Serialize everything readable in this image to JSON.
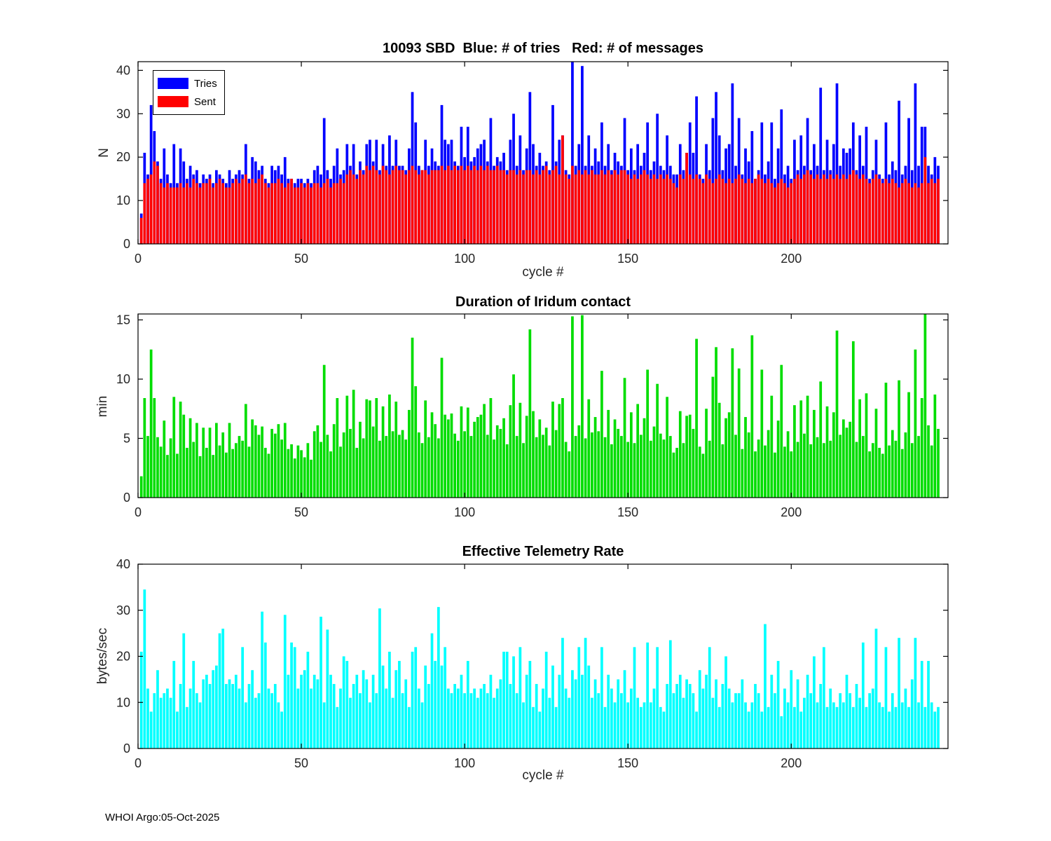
{
  "footer_text": "WHOI Argo:05-Oct-2025",
  "chart_data": [
    {
      "type": "bar",
      "title": "10093 SBD  Blue: # of tries   Red: # of messages",
      "ylabel": "N",
      "xlabel": "cycle #",
      "xlim": [
        0,
        248
      ],
      "ylim": [
        0,
        42
      ],
      "xticks": [
        0,
        50,
        100,
        150,
        200
      ],
      "yticks": [
        0,
        10,
        20,
        30,
        40
      ],
      "legend_position": "top-left",
      "grid": false,
      "series": [
        {
          "name": "Tries",
          "color": "#0000FF",
          "values": [
            7,
            21,
            16,
            32,
            26,
            19,
            15,
            22,
            16,
            14,
            23,
            14,
            22,
            19,
            15,
            18,
            16,
            17,
            14,
            16,
            15,
            16,
            14,
            17,
            16,
            15,
            14,
            17,
            15,
            16,
            17,
            16,
            23,
            15,
            20,
            19,
            17,
            18,
            15,
            14,
            18,
            17,
            18,
            16,
            20,
            15,
            15,
            14,
            15,
            15,
            14,
            15,
            14,
            17,
            18,
            16,
            29,
            17,
            15,
            18,
            22,
            16,
            17,
            23,
            18,
            23,
            16,
            19,
            17,
            23,
            24,
            19,
            24,
            17,
            23,
            18,
            25,
            18,
            24,
            18,
            18,
            17,
            22,
            35,
            28,
            18,
            17,
            24,
            18,
            22,
            19,
            18,
            32,
            24,
            23,
            24,
            19,
            18,
            27,
            20,
            27,
            19,
            20,
            22,
            23,
            24,
            19,
            29,
            18,
            20,
            19,
            21,
            17,
            24,
            30,
            18,
            25,
            17,
            22,
            35,
            23,
            18,
            21,
            18,
            19,
            17,
            32,
            19,
            24,
            25,
            17,
            16,
            42,
            18,
            23,
            41,
            18,
            25,
            18,
            22,
            19,
            28,
            18,
            23,
            17,
            21,
            19,
            18,
            29,
            17,
            22,
            17,
            23,
            18,
            21,
            28,
            17,
            19,
            30,
            18,
            17,
            25,
            18,
            16,
            16,
            23,
            17,
            21,
            28,
            21,
            34,
            16,
            15,
            23,
            17,
            29,
            35,
            25,
            17,
            22,
            23,
            37,
            18,
            29,
            16,
            22,
            19,
            26,
            15,
            17,
            28,
            16,
            19,
            28,
            15,
            22,
            31,
            16,
            18,
            15,
            24,
            17,
            25,
            18,
            29,
            17,
            23,
            18,
            36,
            17,
            24,
            17,
            23,
            37,
            18,
            22,
            21,
            22,
            28,
            17,
            25,
            18,
            27,
            15,
            17,
            24,
            16,
            15,
            28,
            16,
            19,
            17,
            33,
            16,
            18,
            29,
            17,
            37,
            18,
            27,
            27,
            18,
            16,
            20,
            18
          ]
        },
        {
          "name": "Sent",
          "color": "#FF0000",
          "values": [
            6,
            14,
            15,
            16,
            19,
            18,
            14,
            13,
            14,
            13,
            13,
            13,
            14,
            13,
            14,
            13,
            15,
            14,
            13,
            14,
            14,
            15,
            13,
            14,
            15,
            14,
            13,
            13,
            14,
            15,
            14,
            15,
            16,
            14,
            15,
            14,
            15,
            16,
            14,
            13,
            14,
            14,
            15,
            14,
            13,
            14,
            15,
            13,
            13,
            14,
            13,
            14,
            13,
            14,
            14,
            13,
            14,
            15,
            13,
            14,
            14,
            15,
            14,
            16,
            17,
            16,
            15,
            17,
            16,
            18,
            17,
            18,
            17,
            16,
            18,
            17,
            16,
            17,
            18,
            17,
            17,
            16,
            17,
            18,
            17,
            16,
            17,
            17,
            16,
            17,
            17,
            17,
            18,
            17,
            18,
            17,
            18,
            17,
            18,
            17,
            18,
            17,
            18,
            17,
            18,
            17,
            18,
            17,
            17,
            18,
            17,
            17,
            16,
            17,
            17,
            16,
            17,
            16,
            17,
            17,
            16,
            17,
            16,
            17,
            18,
            16,
            17,
            18,
            16,
            25,
            16,
            15,
            18,
            16,
            17,
            16,
            17,
            16,
            17,
            16,
            16,
            17,
            16,
            17,
            16,
            17,
            16,
            17,
            17,
            16,
            15,
            16,
            15,
            16,
            17,
            16,
            15,
            16,
            15,
            16,
            15,
            16,
            15,
            14,
            13,
            16,
            15,
            21,
            16,
            15,
            16,
            15,
            14,
            16,
            15,
            14,
            15,
            16,
            15,
            14,
            15,
            14,
            15,
            16,
            15,
            14,
            15,
            14,
            15,
            16,
            15,
            14,
            15,
            14,
            13,
            14,
            15,
            14,
            13,
            14,
            15,
            16,
            15,
            16,
            17,
            16,
            15,
            16,
            15,
            16,
            15,
            16,
            15,
            16,
            15,
            16,
            15,
            16,
            17,
            16,
            15,
            16,
            15,
            14,
            15,
            16,
            15,
            14,
            15,
            14,
            15,
            14,
            13,
            14,
            15,
            14,
            13,
            14,
            13,
            14,
            20,
            14,
            15,
            14,
            15
          ]
        }
      ]
    },
    {
      "type": "bar",
      "title": "Duration of Iridum contact",
      "ylabel": "min",
      "xlabel": "",
      "xlim": [
        0,
        248
      ],
      "ylim": [
        0,
        15.5
      ],
      "xticks": [
        0,
        50,
        100,
        150,
        200
      ],
      "yticks": [
        0,
        5,
        10,
        15
      ],
      "grid": false,
      "series": [
        {
          "name": "Duration",
          "color": "#00DD00",
          "values": [
            1.8,
            8.4,
            5.2,
            12.5,
            8.4,
            5.1,
            4.3,
            6.5,
            3.6,
            5.0,
            8.5,
            3.7,
            8.1,
            7.0,
            4.2,
            6.7,
            4.7,
            6.3,
            3.5,
            5.9,
            4.2,
            5.9,
            3.6,
            6.3,
            4.4,
            5.5,
            3.8,
            6.3,
            4.1,
            4.6,
            5.2,
            4.8,
            7.9,
            4.3,
            6.6,
            6.1,
            5.3,
            6.0,
            4.2,
            3.7,
            5.8,
            5.4,
            6.2,
            4.9,
            6.3,
            4.1,
            4.5,
            3.3,
            4.4,
            4.0,
            3.4,
            4.6,
            3.2,
            5.6,
            6.1,
            4.7,
            11.2,
            5.3,
            3.9,
            6.2,
            8.4,
            4.3,
            5.5,
            8.6,
            5.8,
            9.1,
            4.2,
            6.4,
            5.0,
            8.3,
            8.2,
            6.0,
            8.4,
            4.8,
            7.7,
            5.2,
            8.7,
            5.6,
            8.1,
            5.3,
            5.7,
            4.9,
            7.4,
            13.5,
            9.4,
            5.5,
            4.6,
            8.2,
            5.1,
            7.2,
            6.2,
            5.0,
            11.8,
            7.0,
            6.6,
            7.1,
            5.4,
            4.8,
            7.7,
            5.6,
            7.6,
            5.2,
            6.4,
            6.8,
            7.0,
            7.9,
            5.3,
            8.4,
            4.9,
            6.1,
            5.8,
            6.7,
            4.5,
            7.8,
            10.4,
            5.2,
            8.0,
            4.6,
            6.9,
            14.2,
            7.3,
            5.1,
            6.6,
            5.3,
            5.9,
            4.4,
            8.1,
            5.7,
            7.9,
            8.4,
            4.7,
            3.9,
            15.3,
            5.2,
            6.1,
            15.4,
            5.0,
            8.3,
            5.5,
            6.8,
            5.6,
            10.7,
            5.1,
            7.4,
            4.5,
            6.6,
            5.8,
            5.2,
            10.1,
            4.7,
            7.2,
            4.6,
            7.9,
            5.3,
            6.7,
            10.8,
            4.8,
            6.0,
            9.6,
            5.4,
            4.9,
            8.5,
            5.2,
            3.8,
            4.2,
            7.3,
            4.6,
            6.9,
            7.0,
            5.8,
            13.4,
            4.3,
            3.7,
            7.5,
            4.8,
            10.2,
            12.7,
            8.0,
            4.5,
            6.7,
            7.2,
            12.6,
            5.3,
            10.9,
            4.1,
            6.8,
            5.5,
            13.7,
            3.9,
            4.9,
            10.8,
            4.4,
            5.7,
            8.6,
            3.8,
            6.5,
            11.2,
            4.3,
            5.6,
            3.9,
            7.8,
            4.7,
            8.2,
            5.4,
            8.6,
            4.5,
            7.4,
            5.1,
            9.8,
            4.6,
            7.7,
            4.8,
            7.2,
            14.1,
            5.3,
            6.6,
            5.9,
            6.4,
            13.2,
            4.7,
            8.3,
            5.2,
            8.8,
            3.9,
            4.6,
            7.5,
            4.2,
            3.7,
            9.7,
            4.4,
            5.7,
            4.8,
            9.9,
            4.1,
            5.5,
            8.9,
            4.6,
            12.5,
            5.2,
            8.4,
            15.6,
            6.1,
            4.4,
            8.7,
            5.8
          ]
        }
      ]
    },
    {
      "type": "bar",
      "title": "Effective Telemetry Rate",
      "ylabel": "bytes/sec",
      "xlabel": "cycle #",
      "xlim": [
        0,
        248
      ],
      "ylim": [
        0,
        40
      ],
      "xticks": [
        0,
        50,
        100,
        150,
        200
      ],
      "yticks": [
        0,
        10,
        20,
        30,
        40
      ],
      "grid": false,
      "series": [
        {
          "name": "Rate",
          "color": "#00FFFF",
          "values": [
            21,
            34.5,
            13,
            8,
            12,
            17,
            11,
            12,
            13,
            11,
            19,
            8,
            14,
            25,
            9,
            13,
            19,
            12,
            10,
            15,
            16,
            14,
            17,
            18,
            25,
            26,
            14,
            15,
            14,
            16,
            13,
            22,
            10,
            14,
            17,
            11,
            12,
            29.7,
            23,
            13,
            12,
            14,
            10,
            8,
            29,
            16,
            23,
            22,
            13,
            16,
            17,
            21,
            13,
            16,
            15,
            28.6,
            10,
            25.8,
            16,
            14,
            9,
            13,
            20,
            19,
            11,
            14,
            16,
            12,
            17,
            15,
            10,
            16,
            12,
            30.4,
            18,
            13,
            21,
            11,
            17,
            19,
            12,
            15,
            9,
            21,
            22,
            13,
            10,
            18,
            14,
            25,
            19,
            30.7,
            18,
            22,
            13,
            12,
            14,
            13,
            16,
            12,
            19,
            12,
            13,
            11,
            13,
            14,
            12,
            16,
            11,
            13,
            15,
            21,
            21,
            14,
            20,
            12,
            22,
            10,
            16,
            19,
            9,
            14,
            8,
            13,
            21,
            11,
            18,
            9,
            16,
            24,
            13,
            11,
            17,
            15,
            22,
            16,
            24,
            18,
            11,
            15,
            12,
            22,
            9,
            16,
            13,
            10,
            15,
            12,
            17,
            10,
            13,
            22,
            11,
            9,
            10,
            23,
            10,
            13,
            22,
            9,
            8,
            14,
            23.5,
            12,
            14,
            16,
            11,
            15,
            14,
            12,
            8,
            17,
            13,
            16,
            22,
            11,
            15,
            9,
            14,
            20,
            13,
            10,
            12,
            12,
            15,
            10,
            8,
            10,
            14,
            12,
            8,
            27,
            9,
            16,
            12,
            19,
            7,
            13,
            10,
            17,
            9,
            15,
            8,
            11,
            16,
            12,
            20,
            10,
            14,
            22,
            9,
            13,
            10,
            9,
            12,
            10,
            16,
            12,
            9,
            14,
            11,
            23,
            9,
            12,
            13,
            26,
            10,
            9,
            22,
            8,
            12,
            9,
            24,
            10,
            13,
            9,
            15,
            24,
            10,
            19,
            9,
            19,
            10,
            8,
            9
          ]
        }
      ]
    }
  ]
}
